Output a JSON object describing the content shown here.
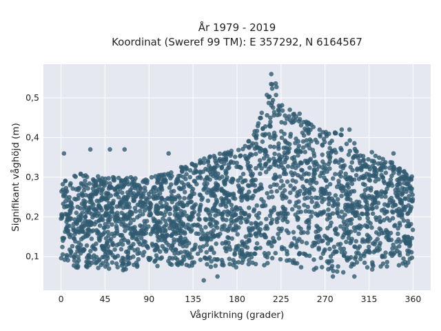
{
  "chart_data": {
    "type": "scatter",
    "title_lines": [
      "År 1979 - 2019",
      "Koordinat (Sweref 99 TM): E 357292, N 6164567"
    ],
    "xlabel": "Vågriktning (grader)",
    "ylabel": "Signifikant våghöjd (m)",
    "xlim": [
      -18,
      378
    ],
    "ylim": [
      0.015,
      0.585
    ],
    "x_ticks": [
      0,
      45,
      90,
      135,
      180,
      225,
      270,
      315,
      360
    ],
    "x_tick_labels": [
      "0",
      "45",
      "90",
      "135",
      "180",
      "225",
      "270",
      "315",
      "360"
    ],
    "y_ticks": [
      0.1,
      0.2,
      0.3,
      0.4,
      0.5
    ],
    "y_tick_labels": [
      "0,1",
      "0,2",
      "0,3",
      "0,4",
      "0,5"
    ],
    "grid": true,
    "legend": "none",
    "marker_color": "#2f5a70",
    "plot_background": "#e5e8f1",
    "envelope": {
      "x": [
        0,
        20,
        45,
        70,
        90,
        110,
        135,
        160,
        180,
        195,
        205,
        212,
        220,
        225,
        232,
        245,
        270,
        285,
        300,
        315,
        330,
        345,
        360
      ],
      "y_min": [
        0.08,
        0.065,
        0.065,
        0.065,
        0.07,
        0.075,
        0.075,
        0.07,
        0.07,
        0.08,
        0.075,
        0.08,
        0.09,
        0.07,
        0.07,
        0.07,
        0.065,
        0.06,
        0.06,
        0.06,
        0.065,
        0.07,
        0.08
      ],
      "y_max": [
        0.29,
        0.31,
        0.3,
        0.3,
        0.3,
        0.31,
        0.34,
        0.36,
        0.37,
        0.4,
        0.46,
        0.53,
        0.55,
        0.5,
        0.47,
        0.45,
        0.42,
        0.41,
        0.39,
        0.37,
        0.35,
        0.33,
        0.3
      ]
    },
    "outliers": [
      {
        "x": 3,
        "y": 0.36
      },
      {
        "x": 30,
        "y": 0.37
      },
      {
        "x": 50,
        "y": 0.37
      },
      {
        "x": 65,
        "y": 0.37
      },
      {
        "x": 110,
        "y": 0.36
      },
      {
        "x": 146,
        "y": 0.04
      },
      {
        "x": 160,
        "y": 0.05
      },
      {
        "x": 215,
        "y": 0.56
      },
      {
        "x": 234,
        "y": 0.47
      },
      {
        "x": 244,
        "y": 0.46
      },
      {
        "x": 287,
        "y": 0.42
      },
      {
        "x": 295,
        "y": 0.42
      },
      {
        "x": 340,
        "y": 0.36
      },
      {
        "x": 300,
        "y": 0.05
      },
      {
        "x": 278,
        "y": 0.05
      }
    ]
  }
}
